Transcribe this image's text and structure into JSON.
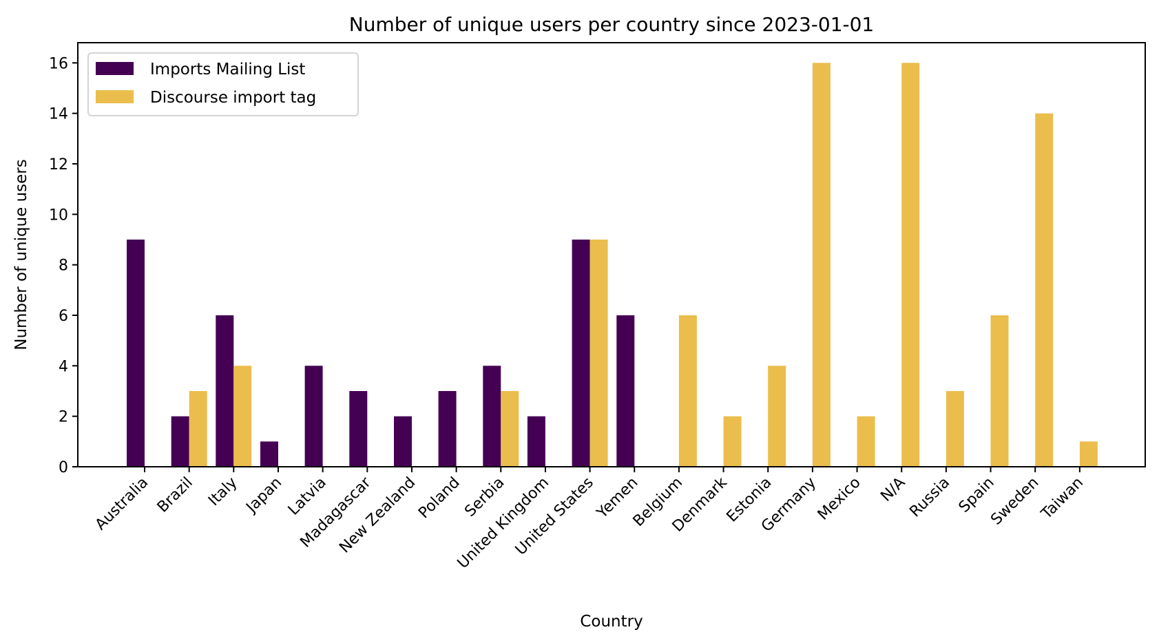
{
  "chart_data": {
    "type": "bar",
    "title": "Number of unique users per country since 2023-01-01",
    "xlabel": "Country",
    "ylabel": "Number of unique users",
    "categories": [
      "Australia",
      "Brazil",
      "Italy",
      "Japan",
      "Latvia",
      "Madagascar",
      "New Zealand",
      "Poland",
      "Serbia",
      "United Kingdom",
      "United States",
      "Yemen",
      "Belgium",
      "Denmark",
      "Estonia",
      "Germany",
      "Mexico",
      "N/A",
      "Russia",
      "Spain",
      "Sweden",
      "Taiwan"
    ],
    "series": [
      {
        "name": "Imports Mailing List",
        "color": "#440154",
        "values": [
          9,
          2,
          6,
          1,
          4,
          3,
          2,
          3,
          4,
          2,
          9,
          6,
          0,
          0,
          0,
          0,
          0,
          0,
          0,
          0,
          0,
          0
        ]
      },
      {
        "name": "Discourse import tag",
        "color": "#EBBD4C",
        "values": [
          0,
          3,
          4,
          0,
          0,
          0,
          0,
          0,
          3,
          0,
          9,
          0,
          6,
          2,
          4,
          16,
          2,
          16,
          3,
          6,
          14,
          1
        ]
      }
    ],
    "yticks": [
      0,
      2,
      4,
      6,
      8,
      10,
      12,
      14,
      16
    ],
    "ylim": [
      0,
      16.8
    ],
    "xtick_rotation_deg": 45,
    "grid": false,
    "legend": {
      "placement": "top-left"
    }
  }
}
